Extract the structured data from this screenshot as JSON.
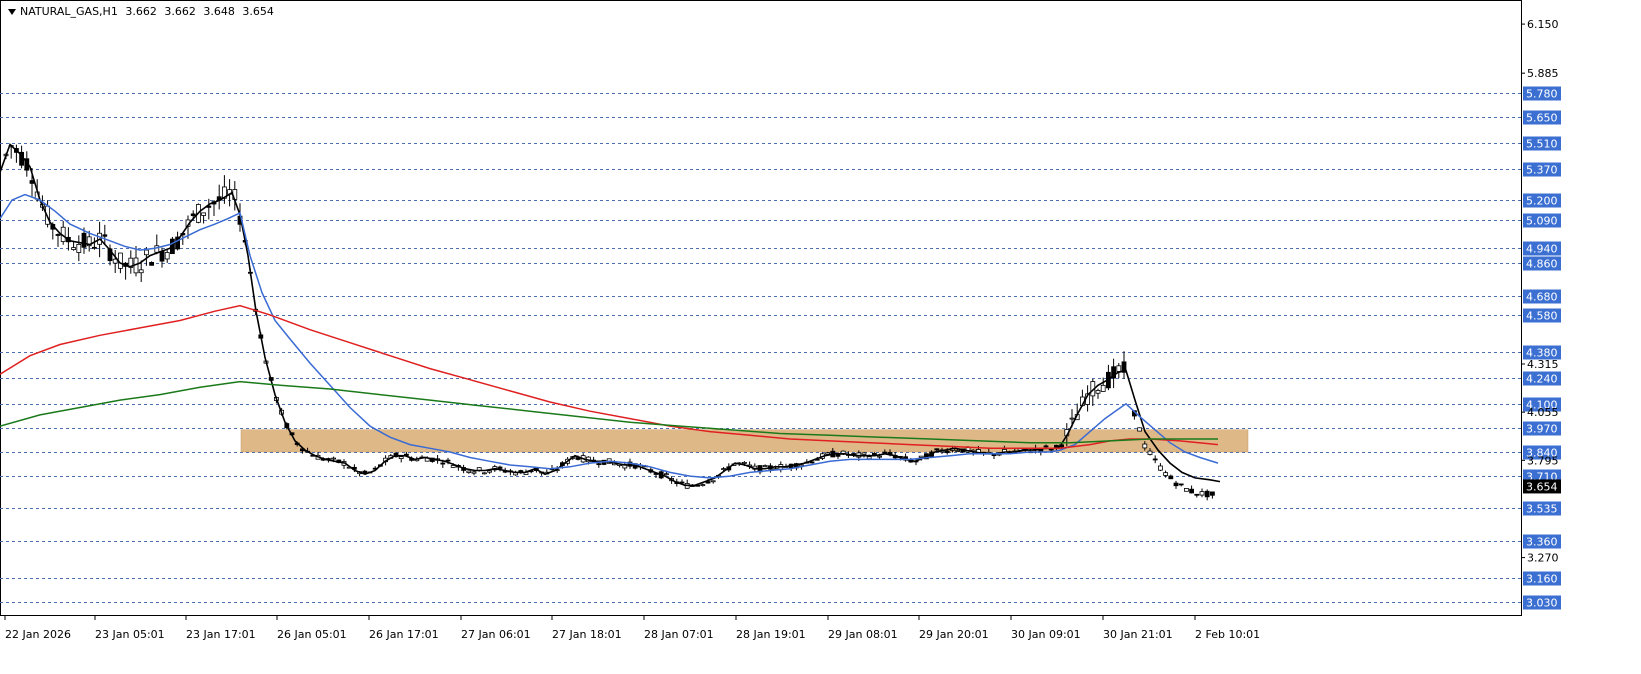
{
  "chart_data": {
    "type": "candlestick",
    "symbol": "NATURAL_GAS,H1",
    "ohlc_header": {
      "open": "3.662",
      "high": "3.662",
      "low": "3.648",
      "close": "3.654"
    },
    "ylim": [
      2.96,
      6.28
    ],
    "price_ticks": [
      "6.150",
      "5.885",
      "4.315",
      "4.055",
      "3.795",
      "3.270"
    ],
    "levels": [
      "5.780",
      "5.650",
      "5.510",
      "5.370",
      "5.200",
      "5.090",
      "4.940",
      "4.860",
      "4.680",
      "4.580",
      "4.380",
      "4.240",
      "4.100",
      "3.970",
      "3.840",
      "3.710",
      "3.535",
      "3.360",
      "3.160",
      "3.030"
    ],
    "current_price": "3.654",
    "x_labels": [
      "22 Jan 2026",
      "23 Jan 05:01",
      "23 Jan 17:01",
      "26 Jan 05:01",
      "26 Jan 17:01",
      "27 Jan 06:01",
      "27 Jan 18:01",
      "28 Jan 07:01",
      "28 Jan 19:01",
      "29 Jan 08:01",
      "29 Jan 20:01",
      "30 Jan 09:01",
      "30 Jan 21:01",
      "2 Feb 10:01"
    ],
    "zone": {
      "top": 3.96,
      "bottom": 3.84
    },
    "series": [
      {
        "color": "#000000",
        "points": [
          [
            0,
            5.35
          ],
          [
            10,
            5.5
          ],
          [
            20,
            5.45
          ],
          [
            30,
            5.38
          ],
          [
            40,
            5.2
          ],
          [
            50,
            5.08
          ],
          [
            60,
            5.02
          ],
          [
            70,
            4.98
          ],
          [
            80,
            4.97
          ],
          [
            90,
            4.96
          ],
          [
            100,
            4.99
          ],
          [
            110,
            4.93
          ],
          [
            120,
            4.86
          ],
          [
            130,
            4.84
          ],
          [
            140,
            4.86
          ],
          [
            150,
            4.9
          ],
          [
            160,
            4.92
          ],
          [
            170,
            4.94
          ],
          [
            180,
            5.0
          ],
          [
            190,
            5.08
          ],
          [
            200,
            5.14
          ],
          [
            210,
            5.18
          ],
          [
            220,
            5.2
          ],
          [
            232,
            5.24
          ],
          [
            240,
            5.12
          ],
          [
            248,
            4.9
          ],
          [
            256,
            4.6
          ],
          [
            265,
            4.35
          ],
          [
            275,
            4.15
          ],
          [
            285,
            4.0
          ],
          [
            295,
            3.9
          ],
          [
            305,
            3.85
          ],
          [
            315,
            3.82
          ],
          [
            325,
            3.8
          ],
          [
            335,
            3.79
          ],
          [
            345,
            3.78
          ],
          [
            355,
            3.74
          ],
          [
            365,
            3.72
          ],
          [
            375,
            3.74
          ],
          [
            385,
            3.79
          ],
          [
            395,
            3.82
          ],
          [
            405,
            3.82
          ],
          [
            415,
            3.8
          ],
          [
            425,
            3.81
          ],
          [
            435,
            3.8
          ],
          [
            445,
            3.79
          ],
          [
            455,
            3.77
          ],
          [
            465,
            3.75
          ],
          [
            475,
            3.74
          ],
          [
            485,
            3.74
          ],
          [
            495,
            3.75
          ],
          [
            505,
            3.74
          ],
          [
            515,
            3.73
          ],
          [
            525,
            3.73
          ],
          [
            535,
            3.75
          ],
          [
            545,
            3.72
          ],
          [
            555,
            3.74
          ],
          [
            565,
            3.78
          ],
          [
            575,
            3.82
          ],
          [
            585,
            3.8
          ],
          [
            595,
            3.79
          ],
          [
            605,
            3.79
          ],
          [
            615,
            3.78
          ],
          [
            625,
            3.77
          ],
          [
            635,
            3.77
          ],
          [
            645,
            3.75
          ],
          [
            655,
            3.73
          ],
          [
            665,
            3.71
          ],
          [
            675,
            3.68
          ],
          [
            685,
            3.66
          ],
          [
            695,
            3.66
          ],
          [
            705,
            3.68
          ],
          [
            715,
            3.7
          ],
          [
            725,
            3.74
          ],
          [
            735,
            3.78
          ],
          [
            745,
            3.77
          ],
          [
            755,
            3.75
          ],
          [
            765,
            3.75
          ],
          [
            775,
            3.76
          ],
          [
            785,
            3.76
          ],
          [
            795,
            3.77
          ],
          [
            805,
            3.78
          ],
          [
            815,
            3.8
          ],
          [
            825,
            3.82
          ],
          [
            835,
            3.83
          ],
          [
            845,
            3.83
          ],
          [
            855,
            3.82
          ],
          [
            865,
            3.82
          ],
          [
            875,
            3.82
          ],
          [
            885,
            3.83
          ],
          [
            895,
            3.82
          ],
          [
            905,
            3.8
          ],
          [
            915,
            3.79
          ],
          [
            925,
            3.81
          ],
          [
            935,
            3.84
          ],
          [
            945,
            3.85
          ],
          [
            955,
            3.86
          ],
          [
            965,
            3.85
          ],
          [
            975,
            3.84
          ],
          [
            985,
            3.83
          ],
          [
            995,
            3.83
          ],
          [
            1005,
            3.84
          ],
          [
            1015,
            3.84
          ],
          [
            1025,
            3.85
          ],
          [
            1035,
            3.85
          ],
          [
            1045,
            3.86
          ],
          [
            1055,
            3.86
          ],
          [
            1060,
            3.87
          ],
          [
            1068,
            3.94
          ],
          [
            1078,
            4.05
          ],
          [
            1088,
            4.15
          ],
          [
            1098,
            4.2
          ],
          [
            1108,
            4.23
          ],
          [
            1118,
            4.27
          ],
          [
            1126,
            4.28
          ],
          [
            1135,
            4.12
          ],
          [
            1145,
            3.95
          ],
          [
            1158,
            3.85
          ],
          [
            1170,
            3.78
          ],
          [
            1182,
            3.73
          ],
          [
            1195,
            3.7
          ],
          [
            1210,
            3.69
          ],
          [
            1220,
            3.68
          ]
        ]
      },
      {
        "color": "#3a6bd4",
        "points": [
          [
            0,
            5.1
          ],
          [
            12,
            5.2
          ],
          [
            25,
            5.23
          ],
          [
            40,
            5.2
          ],
          [
            55,
            5.14
          ],
          [
            70,
            5.07
          ],
          [
            90,
            5.02
          ],
          [
            110,
            4.98
          ],
          [
            125,
            4.95
          ],
          [
            140,
            4.93
          ],
          [
            155,
            4.94
          ],
          [
            170,
            4.96
          ],
          [
            185,
            5.0
          ],
          [
            200,
            5.04
          ],
          [
            215,
            5.07
          ],
          [
            228,
            5.1
          ],
          [
            240,
            5.13
          ],
          [
            250,
            4.9
          ],
          [
            262,
            4.7
          ],
          [
            275,
            4.55
          ],
          [
            290,
            4.45
          ],
          [
            310,
            4.32
          ],
          [
            330,
            4.2
          ],
          [
            350,
            4.08
          ],
          [
            370,
            3.98
          ],
          [
            390,
            3.92
          ],
          [
            410,
            3.88
          ],
          [
            430,
            3.86
          ],
          [
            450,
            3.84
          ],
          [
            470,
            3.81
          ],
          [
            490,
            3.79
          ],
          [
            510,
            3.77
          ],
          [
            530,
            3.76
          ],
          [
            550,
            3.75
          ],
          [
            570,
            3.76
          ],
          [
            590,
            3.78
          ],
          [
            610,
            3.79
          ],
          [
            630,
            3.78
          ],
          [
            650,
            3.76
          ],
          [
            670,
            3.73
          ],
          [
            690,
            3.71
          ],
          [
            710,
            3.7
          ],
          [
            730,
            3.71
          ],
          [
            750,
            3.73
          ],
          [
            770,
            3.74
          ],
          [
            790,
            3.75
          ],
          [
            810,
            3.77
          ],
          [
            830,
            3.79
          ],
          [
            850,
            3.8
          ],
          [
            870,
            3.8
          ],
          [
            890,
            3.8
          ],
          [
            910,
            3.8
          ],
          [
            930,
            3.81
          ],
          [
            950,
            3.82
          ],
          [
            970,
            3.83
          ],
          [
            990,
            3.83
          ],
          [
            1010,
            3.83
          ],
          [
            1030,
            3.84
          ],
          [
            1050,
            3.84
          ],
          [
            1060,
            3.85
          ],
          [
            1075,
            3.88
          ],
          [
            1090,
            3.95
          ],
          [
            1105,
            4.02
          ],
          [
            1118,
            4.07
          ],
          [
            1126,
            4.1
          ],
          [
            1140,
            4.03
          ],
          [
            1155,
            3.96
          ],
          [
            1170,
            3.89
          ],
          [
            1185,
            3.84
          ],
          [
            1200,
            3.81
          ],
          [
            1218,
            3.78
          ]
        ]
      },
      {
        "color": "#e02020",
        "points": [
          [
            0,
            4.26
          ],
          [
            30,
            4.36
          ],
          [
            60,
            4.42
          ],
          [
            100,
            4.47
          ],
          [
            140,
            4.51
          ],
          [
            180,
            4.55
          ],
          [
            215,
            4.6
          ],
          [
            240,
            4.63
          ],
          [
            270,
            4.58
          ],
          [
            310,
            4.5
          ],
          [
            350,
            4.43
          ],
          [
            390,
            4.36
          ],
          [
            430,
            4.29
          ],
          [
            470,
            4.23
          ],
          [
            510,
            4.17
          ],
          [
            550,
            4.11
          ],
          [
            590,
            4.06
          ],
          [
            630,
            4.02
          ],
          [
            670,
            3.98
          ],
          [
            710,
            3.95
          ],
          [
            750,
            3.93
          ],
          [
            790,
            3.91
          ],
          [
            830,
            3.9
          ],
          [
            870,
            3.89
          ],
          [
            910,
            3.88
          ],
          [
            950,
            3.87
          ],
          [
            990,
            3.86
          ],
          [
            1030,
            3.86
          ],
          [
            1060,
            3.86
          ],
          [
            1090,
            3.88
          ],
          [
            1110,
            3.9
          ],
          [
            1130,
            3.91
          ],
          [
            1150,
            3.91
          ],
          [
            1180,
            3.9
          ],
          [
            1218,
            3.88
          ]
        ]
      },
      {
        "color": "#1a7a1a",
        "points": [
          [
            0,
            3.98
          ],
          [
            40,
            4.04
          ],
          [
            80,
            4.08
          ],
          [
            120,
            4.12
          ],
          [
            160,
            4.15
          ],
          [
            200,
            4.19
          ],
          [
            240,
            4.22
          ],
          [
            280,
            4.2
          ],
          [
            330,
            4.18
          ],
          [
            380,
            4.15
          ],
          [
            430,
            4.12
          ],
          [
            480,
            4.09
          ],
          [
            530,
            4.06
          ],
          [
            580,
            4.03
          ],
          [
            630,
            4.0
          ],
          [
            680,
            3.98
          ],
          [
            730,
            3.96
          ],
          [
            780,
            3.94
          ],
          [
            830,
            3.93
          ],
          [
            880,
            3.92
          ],
          [
            930,
            3.91
          ],
          [
            980,
            3.9
          ],
          [
            1030,
            3.89
          ],
          [
            1070,
            3.89
          ],
          [
            1110,
            3.9
          ],
          [
            1150,
            3.91
          ],
          [
            1190,
            3.91
          ],
          [
            1218,
            3.91
          ]
        ]
      }
    ]
  }
}
